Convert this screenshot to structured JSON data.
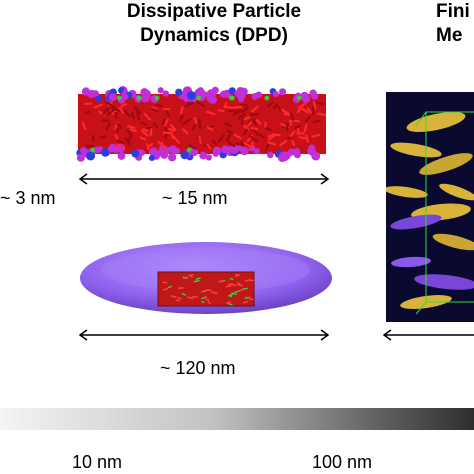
{
  "panels": {
    "dpd": {
      "title_line1": "Dissipative Particle",
      "title_line2": "Dynamics (DPD)"
    },
    "fem": {
      "title_line1": "Fini",
      "title_line2": "Me"
    }
  },
  "labels": {
    "thickness": "~ 3 nm",
    "length_top": "~ 15 nm",
    "length_bottom": "~ 120 nm"
  },
  "scale": {
    "tick_left": "10 nm",
    "tick_right": "100 nm"
  },
  "colors": {
    "membrane_red": "#d0101a",
    "headgroup_magenta": "#c030d8",
    "disk_purple": "#9b6cf2",
    "fem_background": "#0a0a2e",
    "fem_disk_yellow": "#d9b23a",
    "fem_box_green": "#2fdc3a"
  }
}
